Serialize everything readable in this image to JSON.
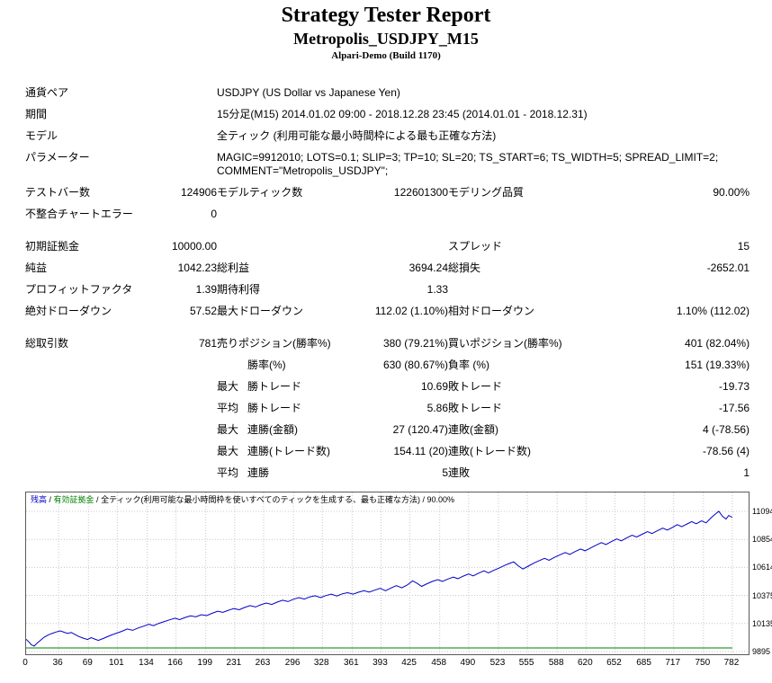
{
  "header": {
    "title": "Strategy Tester Report",
    "subtitle": "Metropolis_USDJPY_M15",
    "build": "Alpari-Demo (Build 1170)"
  },
  "report": {
    "rows": [
      {
        "type": "info",
        "l1": "通貨ペア",
        "text": "USDJPY (US Dollar vs Japanese Yen)"
      },
      {
        "type": "info",
        "l1": "期間",
        "text": "15分足(M15) 2014.01.02 09:00 - 2018.12.28 23:45 (2014.01.01 - 2018.12.31)"
      },
      {
        "type": "info",
        "l1": "モデル",
        "text": "全ティック (利用可能な最小時間枠による最も正確な方法)"
      },
      {
        "type": "info",
        "l1": "パラメーター",
        "text": "MAGIC=9912010; LOTS=0.1; SLIP=3; TP=10; SL=20; TS_START=6; TS_WIDTH=5; SPREAD_LIMIT=2; COMMENT=\"Metropolis_USDJPY\";"
      },
      {
        "type": "stat",
        "l1": "テストバー数",
        "v1": "124906",
        "l2": "モデルティック数",
        "v2": "122601300",
        "l3": "モデリング品質",
        "v3": "90.00%"
      },
      {
        "type": "stat",
        "l1": "不整合チャートエラー",
        "v1": "0",
        "l2": "",
        "v2": "",
        "l3": "",
        "v3": ""
      },
      {
        "type": "gap"
      },
      {
        "type": "stat",
        "l1": "初期証拠金",
        "v1": "10000.00",
        "l2": "",
        "v2": "",
        "l3": "スプレッド",
        "v3": "15"
      },
      {
        "type": "stat",
        "l1": "純益",
        "v1": "1042.23",
        "l2": "総利益",
        "v2": "3694.24",
        "l3": "総損失",
        "v3": "-2652.01"
      },
      {
        "type": "stat",
        "l1": "プロフィットファクタ",
        "v1": "1.39",
        "l2": "期待利得",
        "v2": "1.33",
        "l3": "",
        "v3": ""
      },
      {
        "type": "stat",
        "l1": "絶対ドローダウン",
        "v1": "57.52",
        "l2": "最大ドローダウン",
        "v2": "112.02 (1.10%)",
        "l3": "相対ドローダウン",
        "v3": "1.10% (112.02)"
      },
      {
        "type": "gap"
      },
      {
        "type": "stat",
        "l1": "総取引数",
        "v1": "781",
        "l2": "売りポジション(勝率%)",
        "v2": "380 (79.21%)",
        "l3": "買いポジション(勝率%)",
        "v3": "401 (82.04%)"
      },
      {
        "type": "stat",
        "indent": true,
        "l1": "",
        "v1": "",
        "prefix": "",
        "l2": "勝率(%)",
        "v2": "630 (80.67%)",
        "l3": "負率 (%)",
        "v3": "151 (19.33%)"
      },
      {
        "type": "stat",
        "indent": true,
        "l1": "",
        "v1": "",
        "prefix": "最大",
        "l2": "勝トレード",
        "v2": "10.69",
        "l3": "敗トレード",
        "v3": "-19.73"
      },
      {
        "type": "stat",
        "indent": true,
        "l1": "",
        "v1": "",
        "prefix": "平均",
        "l2": "勝トレード",
        "v2": "5.86",
        "l3": "敗トレード",
        "v3": "-17.56"
      },
      {
        "type": "stat",
        "indent": true,
        "l1": "",
        "v1": "",
        "prefix": "最大",
        "l2": "連勝(金額)",
        "v2": "27 (120.47)",
        "l3": "連敗(金額)",
        "v3": "4 (-78.56)"
      },
      {
        "type": "stat",
        "indent": true,
        "l1": "",
        "v1": "",
        "prefix": "最大",
        "l2": "連勝(トレード数)",
        "v2": "154.11 (20)",
        "l3": "連敗(トレード数)",
        "v3": "-78.56 (4)"
      },
      {
        "type": "stat",
        "indent": true,
        "l1": "",
        "v1": "",
        "prefix": "平均",
        "l2": "連勝",
        "v2": "5",
        "l3": "連敗",
        "v3": "1"
      }
    ]
  },
  "chart_data": {
    "type": "line",
    "title": "残高 / 有効証拠金 / 全ティック(利用可能な最小時間枠を使いすべてのティックを生成する、最も正確な方法) / 90.00%",
    "legend": [
      {
        "text": "残高",
        "color": "#0000c8"
      },
      {
        "text": "有効証拠金",
        "color": "#008000"
      },
      {
        "text": "全ティック(利用可能な最小時間枠を使いすべてのティックを生成する、最も正確な方法)",
        "color": "#000000"
      },
      {
        "text": "90.00%",
        "color": "#000000"
      }
    ],
    "grid_color": "#c8c8c8",
    "y_ticks": [
      11094,
      10854,
      10614,
      10375,
      10135,
      9895
    ],
    "x_ticks": [
      0,
      36,
      69,
      101,
      134,
      166,
      199,
      231,
      263,
      296,
      328,
      361,
      393,
      425,
      458,
      490,
      523,
      555,
      588,
      620,
      652,
      685,
      717,
      750,
      782
    ],
    "ylim": [
      9872,
      11255
    ],
    "xlim": [
      0,
      800
    ],
    "xlabel": "",
    "ylabel": "",
    "series": [
      {
        "name": "残高",
        "color": "#0000c8",
        "points": [
          [
            0,
            10000
          ],
          [
            3,
            9978
          ],
          [
            6,
            9952
          ],
          [
            9,
            9942
          ],
          [
            12,
            9965
          ],
          [
            16,
            9992
          ],
          [
            20,
            10018
          ],
          [
            24,
            10035
          ],
          [
            28,
            10048
          ],
          [
            33,
            10062
          ],
          [
            38,
            10072
          ],
          [
            42,
            10060
          ],
          [
            46,
            10050
          ],
          [
            50,
            10058
          ],
          [
            54,
            10042
          ],
          [
            58,
            10025
          ],
          [
            63,
            10010
          ],
          [
            68,
            9998
          ],
          [
            72,
            10014
          ],
          [
            76,
            10002
          ],
          [
            80,
            9990
          ],
          [
            85,
            10006
          ],
          [
            90,
            10022
          ],
          [
            95,
            10038
          ],
          [
            100,
            10052
          ],
          [
            106,
            10068
          ],
          [
            112,
            10088
          ],
          [
            118,
            10076
          ],
          [
            124,
            10096
          ],
          [
            130,
            10112
          ],
          [
            136,
            10128
          ],
          [
            141,
            10116
          ],
          [
            147,
            10136
          ],
          [
            153,
            10152
          ],
          [
            159,
            10166
          ],
          [
            165,
            10180
          ],
          [
            170,
            10168
          ],
          [
            176,
            10186
          ],
          [
            182,
            10200
          ],
          [
            188,
            10192
          ],
          [
            194,
            10210
          ],
          [
            200,
            10202
          ],
          [
            206,
            10222
          ],
          [
            212,
            10240
          ],
          [
            218,
            10230
          ],
          [
            224,
            10248
          ],
          [
            230,
            10262
          ],
          [
            236,
            10252
          ],
          [
            242,
            10272
          ],
          [
            248,
            10288
          ],
          [
            254,
            10276
          ],
          [
            260,
            10295
          ],
          [
            266,
            10310
          ],
          [
            272,
            10298
          ],
          [
            278,
            10318
          ],
          [
            284,
            10334
          ],
          [
            290,
            10322
          ],
          [
            296,
            10342
          ],
          [
            302,
            10356
          ],
          [
            308,
            10344
          ],
          [
            314,
            10362
          ],
          [
            320,
            10372
          ],
          [
            326,
            10356
          ],
          [
            332,
            10374
          ],
          [
            338,
            10386
          ],
          [
            344,
            10370
          ],
          [
            350,
            10388
          ],
          [
            356,
            10398
          ],
          [
            362,
            10386
          ],
          [
            368,
            10402
          ],
          [
            374,
            10415
          ],
          [
            380,
            10403
          ],
          [
            386,
            10420
          ],
          [
            392,
            10436
          ],
          [
            398,
            10415
          ],
          [
            404,
            10438
          ],
          [
            410,
            10458
          ],
          [
            416,
            10440
          ],
          [
            422,
            10464
          ],
          [
            428,
            10500
          ],
          [
            433,
            10478
          ],
          [
            438,
            10452
          ],
          [
            444,
            10475
          ],
          [
            450,
            10495
          ],
          [
            456,
            10510
          ],
          [
            461,
            10494
          ],
          [
            467,
            10515
          ],
          [
            473,
            10532
          ],
          [
            478,
            10518
          ],
          [
            484,
            10540
          ],
          [
            490,
            10558
          ],
          [
            495,
            10542
          ],
          [
            501,
            10565
          ],
          [
            507,
            10585
          ],
          [
            512,
            10568
          ],
          [
            518,
            10590
          ],
          [
            524,
            10610
          ],
          [
            530,
            10632
          ],
          [
            535,
            10648
          ],
          [
            540,
            10662
          ],
          [
            545,
            10628
          ],
          [
            550,
            10600
          ],
          [
            556,
            10625
          ],
          [
            562,
            10650
          ],
          [
            568,
            10672
          ],
          [
            574,
            10692
          ],
          [
            579,
            10676
          ],
          [
            585,
            10700
          ],
          [
            591,
            10722
          ],
          [
            597,
            10742
          ],
          [
            602,
            10726
          ],
          [
            608,
            10750
          ],
          [
            614,
            10772
          ],
          [
            619,
            10756
          ],
          [
            625,
            10780
          ],
          [
            631,
            10804
          ],
          [
            637,
            10826
          ],
          [
            642,
            10810
          ],
          [
            648,
            10835
          ],
          [
            654,
            10858
          ],
          [
            659,
            10842
          ],
          [
            665,
            10866
          ],
          [
            671,
            10890
          ],
          [
            676,
            10874
          ],
          [
            682,
            10898
          ],
          [
            688,
            10920
          ],
          [
            693,
            10904
          ],
          [
            699,
            10928
          ],
          [
            705,
            10950
          ],
          [
            710,
            10934
          ],
          [
            716,
            10958
          ],
          [
            721,
            10980
          ],
          [
            726,
            10962
          ],
          [
            732,
            10986
          ],
          [
            737,
            11006
          ],
          [
            742,
            10988
          ],
          [
            748,
            11012
          ],
          [
            753,
            10995
          ],
          [
            758,
            11035
          ],
          [
            763,
            11070
          ],
          [
            767,
            11094
          ],
          [
            771,
            11052
          ],
          [
            775,
            11028
          ],
          [
            778,
            11058
          ],
          [
            782,
            11042
          ]
        ]
      },
      {
        "name": "有効証拠金(ロット)",
        "color": "#008000"
      }
    ]
  }
}
